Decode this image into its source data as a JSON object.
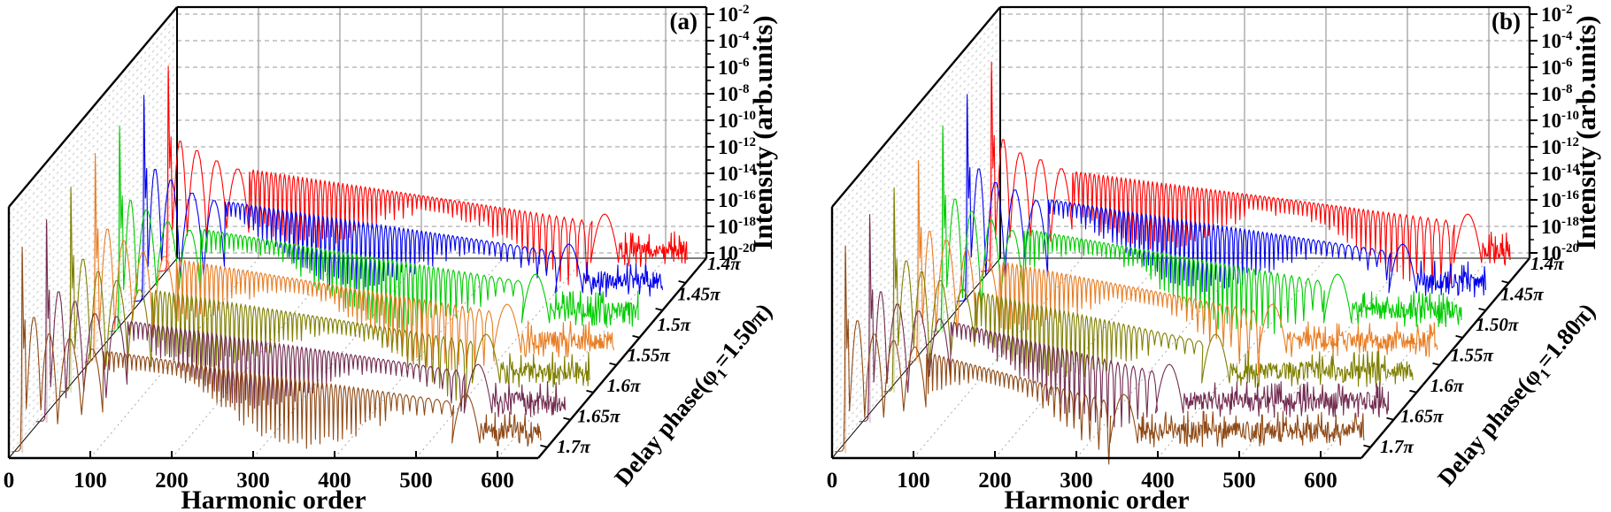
{
  "figure_title": "",
  "chart_data": {
    "type": "line",
    "layout": "two 3D waterfall panels of harmonic spectra",
    "panels": [
      {
        "id": "a",
        "panel_label": "(a)",
        "x_axis": {
          "label": "Harmonic order",
          "ticks": [
            "0",
            "100",
            "200",
            "300",
            "400",
            "500",
            "600"
          ],
          "range": [
            0,
            650
          ]
        },
        "z_axis": {
          "label": "Intensity (arb.units)",
          "tick_labels_base": "10",
          "tick_exponents": [
            "-2",
            "-4",
            "-6",
            "-8",
            "-10",
            "-12",
            "-14",
            "-16",
            "-18",
            "-20"
          ],
          "range_exponents": [
            -2,
            -21
          ]
        },
        "depth_axis": {
          "label_prefix": "Delay phase(φ",
          "label_sub": "1",
          "label_suffix": "=1.50π)",
          "tick_labels": [
            "1.4π",
            "1.45π",
            "1.5π",
            "1.55π",
            "1.6π",
            "1.65π",
            "1.7π"
          ]
        },
        "series": [
          {
            "delay_phase": "1.4π",
            "color": "#FF0000",
            "fundamental_peak_harmonic": 13,
            "cutoff_harmonic": 566,
            "noise_floor_exponent": -19.3,
            "spectrum_end_harmonic": 650,
            "seed": 11
          },
          {
            "delay_phase": "1.45π",
            "color": "#0000EE",
            "fundamental_peak_harmonic": 13,
            "cutoff_harmonic": 552,
            "noise_floor_exponent": -19.3,
            "spectrum_end_harmonic": 650,
            "seed": 22
          },
          {
            "delay_phase": "1.5π",
            "color": "#00CC00",
            "fundamental_peak_harmonic": 13,
            "cutoff_harmonic": 541,
            "noise_floor_exponent": -19.3,
            "spectrum_end_harmonic": 650,
            "seed": 33
          },
          {
            "delay_phase": "1.55π",
            "color": "#E87D23",
            "fundamental_peak_harmonic": 13,
            "cutoff_harmonic": 536,
            "noise_floor_exponent": -19.3,
            "spectrum_end_harmonic": 650,
            "seed": 44
          },
          {
            "delay_phase": "1.6π",
            "color": "#7F7F00",
            "fundamental_peak_harmonic": 13,
            "cutoff_harmonic": 540,
            "noise_floor_exponent": -19.3,
            "spectrum_end_harmonic": 650,
            "seed": 55
          },
          {
            "delay_phase": "1.65π",
            "color": "#722C50",
            "fundamental_peak_harmonic": 13,
            "cutoff_harmonic": 560,
            "noise_floor_exponent": -19.3,
            "spectrum_end_harmonic": 650,
            "seed": 66
          },
          {
            "delay_phase": "1.7π",
            "color": "#8F4A16",
            "fundamental_peak_harmonic": 13,
            "cutoff_harmonic": 575,
            "noise_floor_exponent": -19.3,
            "spectrum_end_harmonic": 650,
            "seed": 77
          }
        ]
      },
      {
        "id": "b",
        "panel_label": "(b)",
        "x_axis": {
          "label": "Harmonic order",
          "ticks": [
            "0",
            "100",
            "200",
            "300",
            "400",
            "500",
            "600"
          ],
          "range": [
            0,
            650
          ]
        },
        "z_axis": {
          "label": "Intensity (arb.units)",
          "tick_labels_base": "10",
          "tick_exponents": [
            "-2",
            "-4",
            "-6",
            "-8",
            "-10",
            "-12",
            "-14",
            "-16",
            "-18",
            "-20"
          ],
          "range_exponents": [
            -2,
            -21
          ]
        },
        "depth_axis": {
          "label_prefix": "Delay phase(φ",
          "label_sub": "1",
          "label_suffix": "=1.80π)",
          "tick_labels": [
            "1.4π",
            "1.45π",
            "1.50π",
            "1.55π",
            "1.6π",
            "1.65π",
            "1.7π"
          ]
        },
        "series": [
          {
            "delay_phase": "1.4π",
            "color": "#FF0000",
            "fundamental_peak_harmonic": 13,
            "cutoff_harmonic": 615,
            "noise_floor_exponent": -19.3,
            "spectrum_end_harmonic": 650,
            "seed": 111
          },
          {
            "delay_phase": "1.45π",
            "color": "#0000EE",
            "fundamental_peak_harmonic": 13,
            "cutoff_harmonic": 565,
            "noise_floor_exponent": -19.3,
            "spectrum_end_harmonic": 650,
            "seed": 122
          },
          {
            "delay_phase": "1.50π",
            "color": "#00CC00",
            "fundamental_peak_harmonic": 13,
            "cutoff_harmonic": 515,
            "noise_floor_exponent": -19.3,
            "spectrum_end_harmonic": 650,
            "seed": 133
          },
          {
            "delay_phase": "1.55π",
            "color": "#E87D23",
            "fundamental_peak_harmonic": 13,
            "cutoff_harmonic": 465,
            "noise_floor_exponent": -19.3,
            "spectrum_end_harmonic": 650,
            "seed": 144
          },
          {
            "delay_phase": "1.6π",
            "color": "#7F7F00",
            "fundamental_peak_harmonic": 13,
            "cutoff_harmonic": 425,
            "noise_floor_exponent": -19.3,
            "spectrum_end_harmonic": 650,
            "seed": 155
          },
          {
            "delay_phase": "1.65π",
            "color": "#722C50",
            "fundamental_peak_harmonic": 13,
            "cutoff_harmonic": 398,
            "noise_floor_exponent": -19.3,
            "spectrum_end_harmonic": 650,
            "seed": 166
          },
          {
            "delay_phase": "1.7π",
            "color": "#8F4A16",
            "fundamental_peak_harmonic": 13,
            "cutoff_harmonic": 372,
            "noise_floor_exponent": -19.3,
            "spectrum_end_harmonic": 650,
            "seed": 177
          }
        ]
      }
    ]
  }
}
